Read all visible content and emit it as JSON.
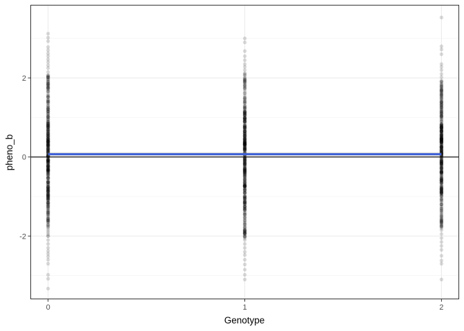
{
  "chart_data": {
    "type": "scatter",
    "title": "",
    "xlabel": "Genotype",
    "ylabel": "pheno_b",
    "xlim": [
      -0.09,
      2.09
    ],
    "ylim": [
      -3.6,
      3.85
    ],
    "x_ticks": [
      0,
      1,
      2
    ],
    "x_tick_labels": [
      "0",
      "1",
      "2"
    ],
    "y_ticks": [
      -2,
      0,
      2
    ],
    "y_tick_labels": [
      "-2",
      "0",
      "2"
    ],
    "minor_y_gridlines": [
      -3,
      -1,
      1,
      3
    ],
    "grid": true,
    "legend": "none",
    "reference_line": {
      "y": 0,
      "color": "#000000"
    },
    "regression": {
      "x": [
        0,
        2
      ],
      "y": [
        0.07,
        0.07
      ],
      "color": "#3d5fd6"
    },
    "series": [
      {
        "name": "Genotype 0",
        "x": 0,
        "range": [
          -3.33,
          3.12
        ],
        "sparse_points": [
          3.12,
          3.02,
          2.93,
          2.78,
          2.7,
          2.62,
          2.55,
          2.47,
          2.4,
          2.32,
          2.25,
          2.15,
          -2.1,
          -2.2,
          -2.3,
          -2.38,
          -2.45,
          -2.52,
          -2.6,
          -2.7,
          -2.98,
          -3.08,
          -3.33
        ],
        "dense_range": [
          -2.0,
          2.1
        ]
      },
      {
        "name": "Genotype 1",
        "x": 1,
        "range": [
          -3.1,
          3.0
        ],
        "sparse_points": [
          3.0,
          2.9,
          2.68,
          2.55,
          2.45,
          2.35,
          2.28,
          2.2,
          -2.1,
          -2.2,
          -2.3,
          -2.4,
          -2.48,
          -2.6,
          -2.72,
          -2.85,
          -2.98,
          -3.1
        ],
        "dense_range": [
          -2.05,
          2.15
        ]
      },
      {
        "name": "Genotype 2",
        "x": 2,
        "range": [
          -3.1,
          3.53
        ],
        "sparse_points": [
          3.53,
          2.8,
          2.72,
          2.6,
          2.35,
          2.28,
          2.2,
          2.1,
          2.02,
          -1.85,
          -1.95,
          -2.05,
          -2.15,
          -2.25,
          -2.35,
          -2.5,
          -2.62,
          -2.7,
          -3.1
        ],
        "dense_range": [
          -1.8,
          1.95
        ]
      }
    ]
  }
}
